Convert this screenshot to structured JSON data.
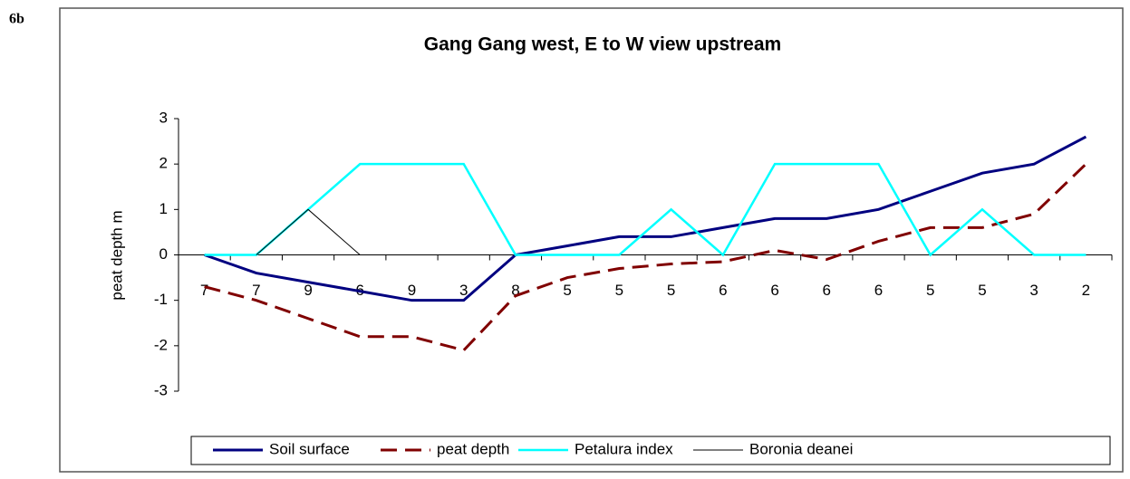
{
  "figure_label": "6b",
  "chart_data": {
    "type": "line",
    "title": "Gang Gang west,  E to W view upstream",
    "y_label": "peat depth m",
    "categories": [
      "7",
      "7",
      "9",
      "6",
      "9",
      "3",
      "8",
      "5",
      "5",
      "5",
      "6",
      "6",
      "6",
      "6",
      "5",
      "5",
      "3",
      "2"
    ],
    "series": [
      {
        "name": "Soil surface",
        "color": "#000080",
        "dash": false,
        "width": 3,
        "values": [
          0,
          -0.4,
          -0.6,
          -0.8,
          -1,
          -1,
          0,
          0.2,
          0.4,
          0.4,
          0.6,
          0.8,
          0.8,
          1.0,
          1.4,
          1.8,
          2.0,
          2.6
        ]
      },
      {
        "name": "peat depth",
        "color": "#800000",
        "dash": true,
        "width": 3,
        "values": [
          -0.7,
          -1.0,
          -1.4,
          -1.8,
          -1.8,
          -2.1,
          -0.9,
          -0.5,
          -0.3,
          -0.2,
          -0.15,
          0.1,
          -0.1,
          0.3,
          0.6,
          0.6,
          0.9,
          2.0
        ]
      },
      {
        "name": "Petalura index",
        "color": "#00ffff",
        "dash": false,
        "width": 2.5,
        "values": [
          0,
          0,
          1,
          2,
          2,
          2,
          0,
          0,
          0,
          1,
          0,
          2,
          2,
          2,
          0,
          1,
          0,
          0
        ]
      },
      {
        "name": "Boronia deanei",
        "color": "#000000",
        "dash": false,
        "width": 1,
        "values": [
          null,
          0,
          1,
          0,
          null,
          null,
          null,
          null,
          null,
          null,
          null,
          null,
          null,
          null,
          null,
          null,
          null,
          null
        ]
      }
    ],
    "ylim": [
      -3,
      3
    ],
    "yticks": [
      3,
      2,
      1,
      0,
      -1,
      -2,
      -3
    ]
  }
}
